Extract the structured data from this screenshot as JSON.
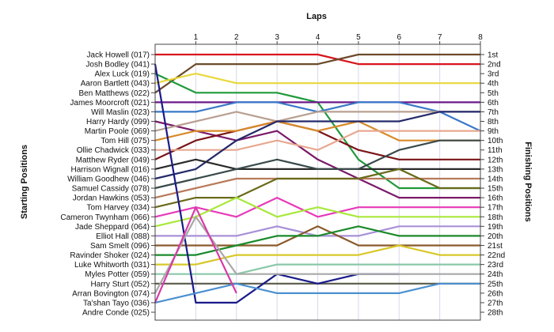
{
  "chart_data": {
    "type": "line",
    "title": "",
    "xlabel": "Laps",
    "ylabel_left": "Starting Positions",
    "ylabel_right": "Finishing Positions",
    "laps": [
      0,
      1,
      2,
      3,
      4,
      5,
      6,
      7,
      8
    ],
    "x_tick_labels": [
      "1",
      "2",
      "3",
      "4",
      "5",
      "6",
      "7",
      "8"
    ],
    "y_range": [
      1,
      28
    ],
    "finishing_labels": [
      "1st",
      "2nd",
      "3rd",
      "4th",
      "5th",
      "6th",
      "7th",
      "8th",
      "9th",
      "10th",
      "11th",
      "12th",
      "13th",
      "14th",
      "15th",
      "16th",
      "17th",
      "18th",
      "19th",
      "20th",
      "21st",
      "22nd",
      "23rd",
      "24th",
      "25th",
      "26th",
      "27th",
      "28th"
    ],
    "grid": true,
    "series": [
      {
        "name": "Jack Howell (017)",
        "color": "#d8141c",
        "values": [
          1,
          1,
          1,
          1,
          1,
          2,
          2,
          2,
          2
        ]
      },
      {
        "name": "Josh Bodley (041)",
        "color": "#6b4a2a",
        "values": [
          5,
          2,
          2,
          2,
          2,
          1,
          1,
          1,
          1
        ]
      },
      {
        "name": "Alex Luck (019)",
        "color": "#1f9a3a",
        "values": [
          3,
          5,
          5,
          5,
          6,
          12,
          15,
          15,
          15
        ]
      },
      {
        "name": "Aaron Bartlett (043)",
        "color": "#e8d83a",
        "values": [
          4,
          3,
          4,
          4,
          4,
          4,
          4,
          4,
          4
        ]
      },
      {
        "name": "Ben Matthews (022)",
        "color": "#7a1a6a",
        "values": [
          8,
          9,
          10,
          9,
          12,
          14,
          16,
          16,
          16
        ]
      },
      {
        "name": "James Moorcroft (021)",
        "color": "#6a1a8a",
        "values": [
          6,
          6,
          6,
          6,
          6,
          6,
          6,
          6,
          6
        ]
      },
      {
        "name": "Will Maslin (023)",
        "color": "#3a78c8",
        "values": [
          7,
          7,
          6,
          6,
          7,
          6,
          6,
          7,
          9
        ]
      },
      {
        "name": "Harry Hardy (099)",
        "color": "#b8a090",
        "values": [
          9,
          8,
          7,
          8,
          7,
          7,
          7,
          7,
          7
        ]
      },
      {
        "name": "Martin Poole (069)",
        "color": "#7a1418",
        "values": [
          12,
          10,
          9,
          8,
          9,
          11,
          12,
          12,
          12
        ]
      },
      {
        "name": "Tom Hill (075)",
        "color": "#d88a2a",
        "values": [
          10,
          9,
          9,
          8,
          9,
          8,
          10,
          10,
          10
        ]
      },
      {
        "name": "Ollie Chadwick (033)",
        "color": "#e8a890",
        "values": [
          11,
          11,
          11,
          10,
          11,
          9,
          9,
          9,
          9
        ]
      },
      {
        "name": "Matthew Ryder (049)",
        "color": "#242a6a",
        "values": [
          14,
          13,
          10,
          8,
          8,
          8,
          8,
          7,
          7
        ]
      },
      {
        "name": "Harrison Wignall (016)",
        "color": "#2a2a2a",
        "values": [
          13,
          12,
          13,
          13,
          13,
          13,
          13,
          13,
          13
        ]
      },
      {
        "name": "William Goodhew (046)",
        "color": "#3a4a4a",
        "values": [
          15,
          14,
          13,
          12,
          13,
          13,
          11,
          10,
          10
        ]
      },
      {
        "name": "Samuel Cassidy (078)",
        "color": "#b87a5a",
        "values": [
          16,
          15,
          14,
          14,
          14,
          14,
          14,
          14,
          14
        ]
      },
      {
        "name": "Jordan Hawkins (053)",
        "color": "#6a6a1a",
        "values": [
          17,
          16,
          16,
          14,
          14,
          14,
          13,
          15,
          15
        ]
      },
      {
        "name": "Tom Harvey (034)",
        "color": "#e83ab8",
        "values": [
          18,
          17,
          18,
          16,
          18,
          17,
          17,
          17,
          17
        ]
      },
      {
        "name": "Cameron Twynham (066)",
        "color": "#a8e83a",
        "values": [
          19,
          18,
          16,
          18,
          17,
          18,
          18,
          18,
          18
        ]
      },
      {
        "name": "Jade Sheppard (064)",
        "color": "#a890d8",
        "values": [
          20,
          20,
          20,
          19,
          20,
          20,
          19,
          19,
          19
        ]
      },
      {
        "name": "Elliot Hall (088)",
        "color": "#8a5a2a",
        "values": [
          21,
          21,
          21,
          21,
          19,
          21,
          21,
          21,
          21
        ]
      },
      {
        "name": "Sam Smelt (096)",
        "color": "#1a8a2a",
        "values": [
          22,
          22,
          21,
          20,
          20,
          19,
          20,
          20,
          20
        ]
      },
      {
        "name": "Ravinder Shoker (024)",
        "color": "#d8c82a",
        "values": [
          23,
          23,
          22,
          22,
          22,
          22,
          21,
          22,
          22
        ]
      },
      {
        "name": "Luke Whitworth (031)",
        "color": "#8ac8a8",
        "values": [
          24,
          24,
          24,
          23,
          23,
          23,
          23,
          23,
          23
        ]
      },
      {
        "name": "Myles Potter (059)",
        "color": "#5a5a4a",
        "values": [
          25,
          25,
          25,
          25,
          25,
          25,
          25,
          25,
          25
        ]
      },
      {
        "name": "Harry Sturt (052)",
        "color": "#1a1a8a",
        "values": [
          2,
          27,
          27,
          24,
          25,
          24,
          24
        ]
      },
      {
        "name": "Arran Bovington (074)",
        "color": "#a8a8a8",
        "values": [
          26,
          18,
          24,
          24,
          24,
          24,
          24,
          24,
          24
        ]
      },
      {
        "name": "Ta'shan Tayo (036)",
        "color": "#4a90d0",
        "values": [
          27,
          26,
          25,
          26,
          26,
          26,
          26,
          25,
          25
        ]
      },
      {
        "name": "Andre Conde (025)",
        "color": "#d83aa8",
        "values": [
          27,
          17,
          26
        ]
      }
    ]
  }
}
